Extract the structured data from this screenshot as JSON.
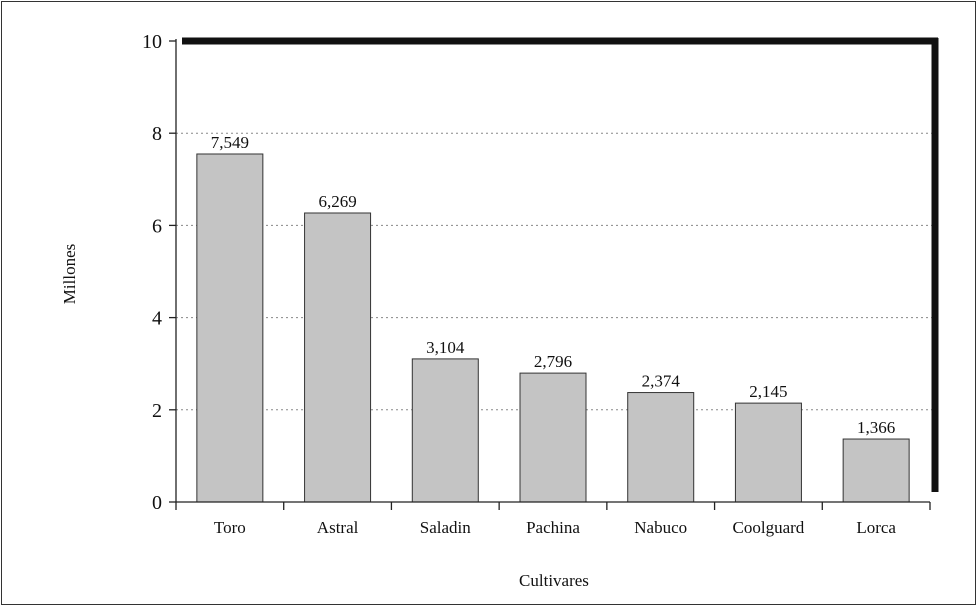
{
  "chart_data": {
    "type": "bar",
    "title": "",
    "xlabel": "Cultivares",
    "ylabel": "Millones",
    "ylim": [
      0,
      10
    ],
    "yticks": [
      0,
      2,
      4,
      6,
      8,
      10
    ],
    "grid": "horizontal-dotted",
    "legend": "none",
    "categories": [
      "Toro",
      "Astral",
      "Saladin",
      "Pachina",
      "Nabuco",
      "Coolguard",
      "Lorca"
    ],
    "values": [
      7.549,
      6.269,
      3.104,
      2.796,
      2.374,
      2.145,
      1.366
    ],
    "data_labels": [
      "7,549",
      "6,269",
      "3,104",
      "2,796",
      "2,374",
      "2,145",
      "1,366"
    ],
    "colors": {
      "bar_fill": "#c4c4c4",
      "bar_stroke": "#333333",
      "frame": "#111111",
      "grid": "#888888"
    }
  }
}
